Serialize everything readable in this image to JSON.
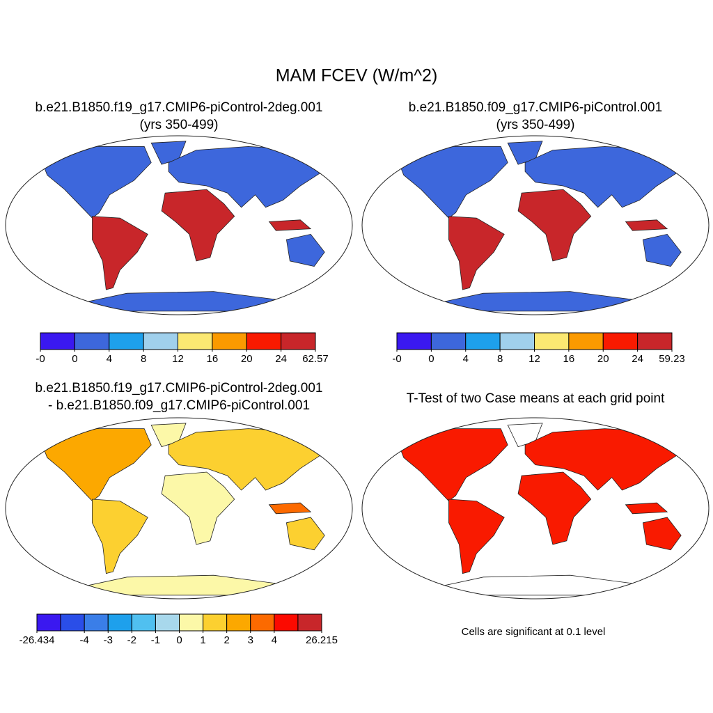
{
  "title": "MAM FCEV (W/m^2)",
  "panels": [
    {
      "title": [
        "b.e21.B1850.f19_g17.CMIP6-piControl-2deg.001",
        "(yrs 350-499)"
      ],
      "colorbar": {
        "colors": [
          "#3a18f0",
          "#3d67dc",
          "#1ea0ec",
          "#a0d0ec",
          "#fbe872",
          "#fb9a00",
          "#f91a00",
          "#c8262a"
        ],
        "ticks": [
          {
            "value": 0,
            "label": "-0"
          },
          0,
          4,
          8,
          12,
          16,
          20,
          24,
          62.57
        ]
      }
    },
    {
      "title": [
        "b.e21.B1850.f09_g17.CMIP6-piControl.001",
        "(yrs 350-499)"
      ],
      "colorbar": {
        "colors": [
          "#3a18f0",
          "#3d67dc",
          "#1ea0ec",
          "#a0d0ec",
          "#fbe872",
          "#fb9a00",
          "#f91a00",
          "#c8262a"
        ],
        "ticks": [
          {
            "value": 0,
            "label": "-0"
          },
          0,
          4,
          8,
          12,
          16,
          20,
          24,
          59.23
        ]
      }
    },
    {
      "title": [
        "b.e21.B1850.f19_g17.CMIP6-piControl-2deg.001",
        "- b.e21.B1850.f09_g17.CMIP6-piControl.001"
      ],
      "colorbar": {
        "colors": [
          "#3a18f0",
          "#2a4ee8",
          "#3a7ee8",
          "#1ea0ec",
          "#50c0f0",
          "#a8d8ec",
          "#fcf8a8",
          "#fcd030",
          "#fca800",
          "#fc6a00",
          "#fc0a00",
          "#c8262a"
        ],
        "ticks": [
          -26.434,
          -4,
          -3,
          -2,
          -1,
          0,
          1,
          2,
          3,
          4,
          26.215
        ]
      }
    },
    {
      "title": [
        "T-Test of two Case means at each grid point"
      ],
      "note": "Cells are significant at 0.1 level"
    }
  ]
}
